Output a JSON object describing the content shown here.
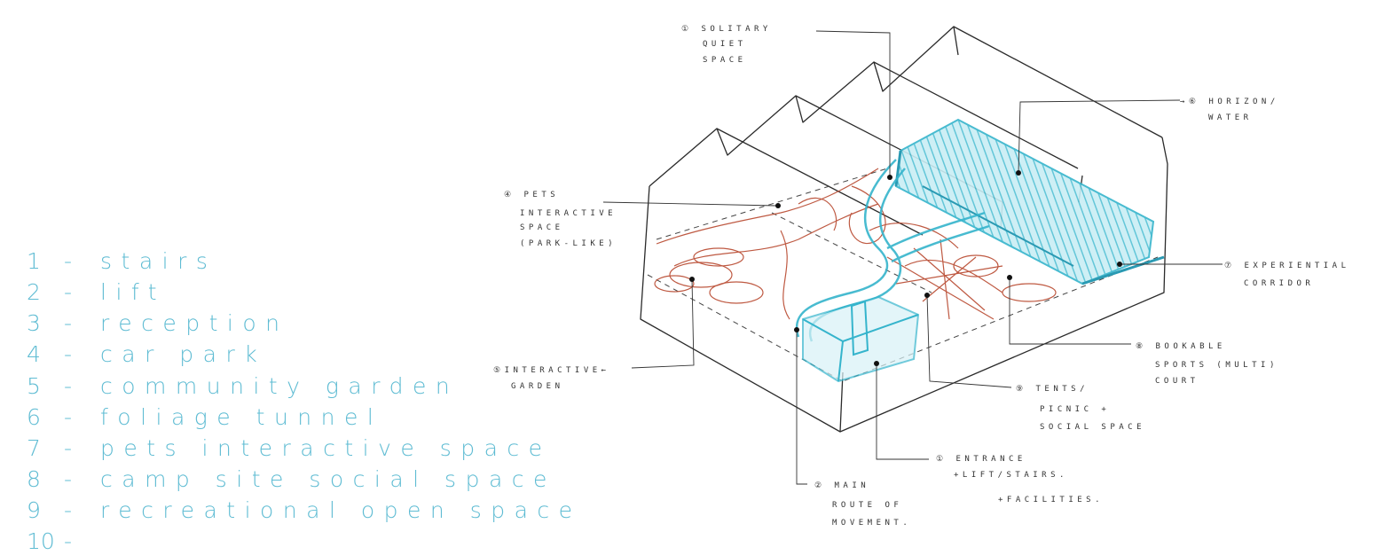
{
  "colors": {
    "legend_text": "#5fbcd3",
    "sketch_ink": "#2b2b2b",
    "water_cyan": "#35b4cc",
    "path_red": "#b8482e"
  },
  "legend": [
    {
      "num": "1",
      "label": "stairs"
    },
    {
      "num": "2",
      "label": "lift"
    },
    {
      "num": "3",
      "label": "reception"
    },
    {
      "num": "4",
      "label": "car park"
    },
    {
      "num": "5",
      "label": "community garden"
    },
    {
      "num": "6",
      "label": "foliage tunnel"
    },
    {
      "num": "7",
      "label": "pets interactive space"
    },
    {
      "num": "8",
      "label": "camp site social space"
    },
    {
      "num": "9",
      "label": "recreational open space"
    },
    {
      "num": "10",
      "label": ""
    }
  ],
  "annotations": {
    "solitary": [
      "① SOLITARY",
      "QUIET",
      "SPACE"
    ],
    "horizon": [
      "→⑥ HORIZON/",
      "WATER"
    ],
    "pets": [
      "④ PETS",
      "INTERACTIVE",
      "SPACE",
      "(PARK-LIKE)"
    ],
    "experiential": [
      "⑦ EXPERIENTIAL",
      "CORRIDOR"
    ],
    "bookable": [
      "⑧ BOOKABLE",
      "SPORTS (MULTI)",
      "COURT"
    ],
    "garden": [
      "⑤INTERACTIVE←",
      "GARDEN"
    ],
    "tents": [
      "⑨ TENTS/",
      "PICNIC +",
      "SOCIAL SPACE"
    ],
    "entrance": [
      "① ENTRANCE",
      "+LIFT/STAIRS.",
      "+FACILITIES."
    ],
    "main_route": [
      "② MAIN",
      "ROUTE OF",
      "MOVEMENT."
    ]
  }
}
